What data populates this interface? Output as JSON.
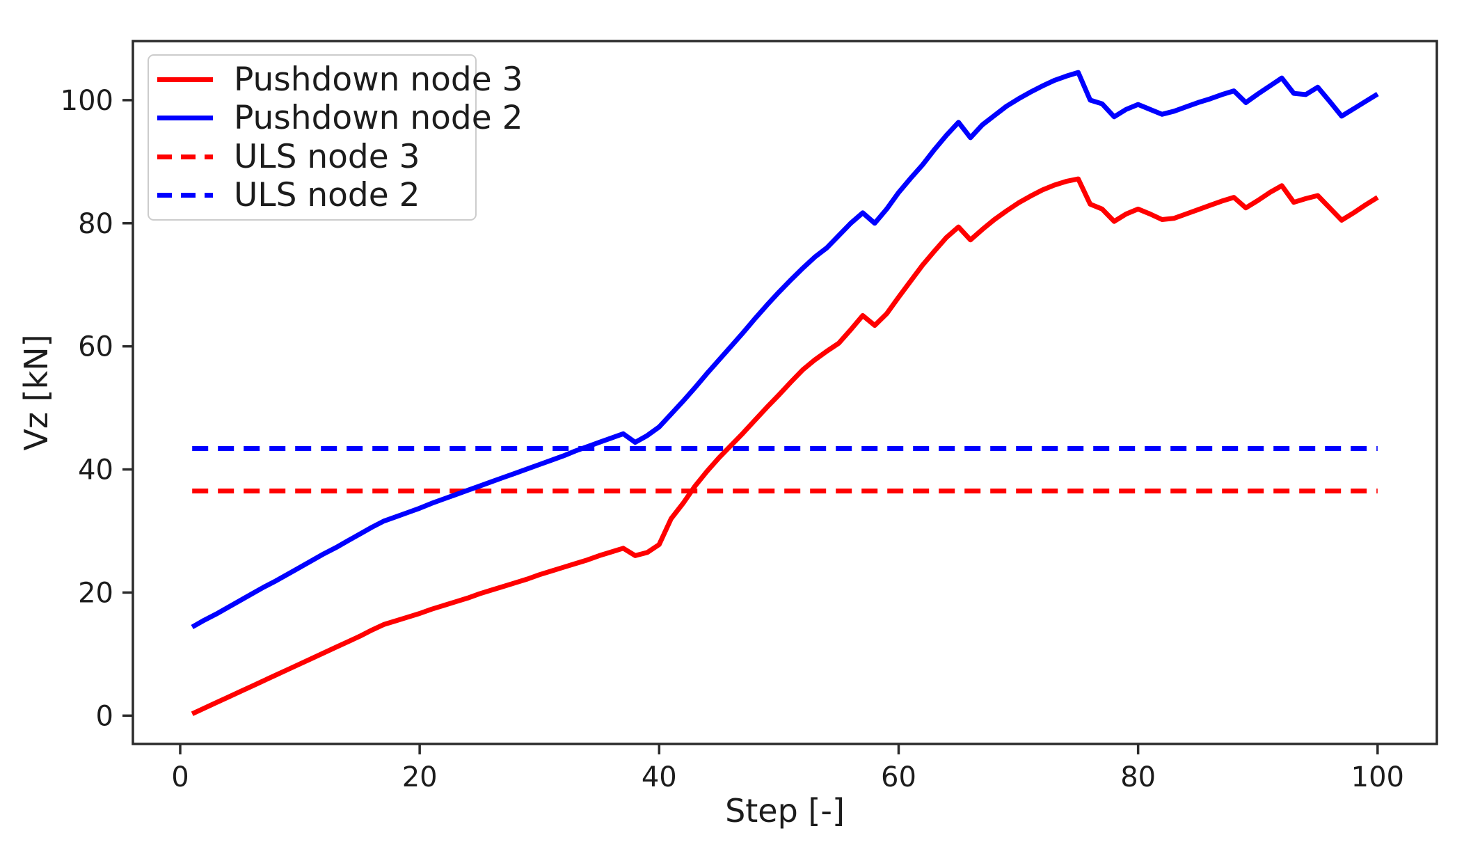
{
  "chart_data": {
    "type": "line",
    "title": "",
    "xlabel": "Step [-]",
    "ylabel": "Vz [kN]",
    "x_ticks": [
      0,
      20,
      40,
      60,
      80,
      100
    ],
    "y_ticks": [
      0,
      20,
      40,
      60,
      80,
      100
    ],
    "xlim": [
      -3.95,
      104.95
    ],
    "ylim": [
      -4.6,
      109.6
    ],
    "grid": false,
    "legend_position": "upper left",
    "axis_color": "#2b2b2b",
    "text_color": "#1c1c1c",
    "series": [
      {
        "name": "Pushdown node 3",
        "color": "#ff0000",
        "style": "solid",
        "x_range": [
          1,
          100
        ],
        "y": [
          0.3,
          1.2,
          2.1,
          3.0,
          3.9,
          4.8,
          5.7,
          6.6,
          7.5,
          8.4,
          9.3,
          10.2,
          11.1,
          12.0,
          12.9,
          13.9,
          14.8,
          15.4,
          16.0,
          16.6,
          17.3,
          17.9,
          18.5,
          19.1,
          19.8,
          20.4,
          21.0,
          21.6,
          22.2,
          22.9,
          23.5,
          24.1,
          24.7,
          25.3,
          26.0,
          26.6,
          27.2,
          26.0,
          26.5,
          27.8,
          32.0,
          34.5,
          37.3,
          39.7,
          41.9,
          43.9,
          45.9,
          48.0,
          50.1,
          52.1,
          54.2,
          56.2,
          57.8,
          59.2,
          60.5,
          62.7,
          65.0,
          63.4,
          65.3,
          68.0,
          70.6,
          73.2,
          75.5,
          77.7,
          79.4,
          77.3,
          79.0,
          80.6,
          82.0,
          83.3,
          84.4,
          85.4,
          86.2,
          86.8,
          87.2,
          83.1,
          82.3,
          80.3,
          81.5,
          82.3,
          81.5,
          80.6,
          80.8,
          81.5,
          82.2,
          82.9,
          83.6,
          84.2,
          82.5,
          83.7,
          85.0,
          86.1,
          83.4,
          84.0,
          84.5,
          82.5,
          80.5,
          81.7,
          83.0,
          84.2
        ]
      },
      {
        "name": "Pushdown node 2",
        "color": "#0000ff",
        "style": "solid",
        "x_range": [
          1,
          100
        ],
        "y": [
          14.4,
          15.5,
          16.5,
          17.6,
          18.7,
          19.8,
          20.9,
          21.9,
          23.0,
          24.1,
          25.2,
          26.3,
          27.3,
          28.4,
          29.5,
          30.6,
          31.6,
          32.3,
          33.0,
          33.7,
          34.5,
          35.2,
          35.9,
          36.6,
          37.3,
          38.0,
          38.7,
          39.4,
          40.1,
          40.8,
          41.5,
          42.2,
          43.0,
          43.7,
          44.4,
          45.1,
          45.8,
          44.4,
          45.5,
          46.9,
          49.0,
          51.1,
          53.3,
          55.6,
          57.8,
          60.0,
          62.2,
          64.5,
          66.7,
          68.8,
          70.8,
          72.7,
          74.5,
          76.0,
          78.0,
          80.0,
          81.7,
          80.0,
          82.3,
          85.0,
          87.3,
          89.5,
          92.0,
          94.3,
          96.4,
          93.9,
          96.0,
          97.5,
          99.0,
          100.2,
          101.3,
          102.3,
          103.2,
          103.9,
          104.5,
          100.0,
          99.4,
          97.3,
          98.5,
          99.3,
          98.5,
          97.7,
          98.2,
          98.9,
          99.6,
          100.2,
          100.9,
          101.5,
          99.6,
          101.0,
          102.3,
          103.6,
          101.1,
          100.9,
          102.1,
          99.8,
          97.4,
          98.6,
          99.8,
          101.0
        ]
      },
      {
        "name": "ULS node 3",
        "color": "#ff0000",
        "style": "dashed",
        "x": [
          1,
          100
        ],
        "y": [
          36.5,
          36.5
        ]
      },
      {
        "name": "ULS node 2",
        "color": "#0000ff",
        "style": "dashed",
        "x": [
          1,
          100
        ],
        "y": [
          43.4,
          43.4
        ]
      }
    ]
  }
}
